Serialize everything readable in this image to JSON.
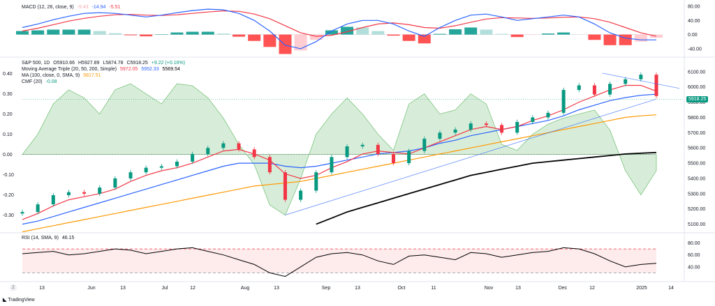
{
  "macd_header": {
    "title": "MACD (12, 26, close, 9)",
    "hist": "-9.43",
    "macd": "-14.94",
    "signal": "-5.51"
  },
  "price_header": {
    "symbol": "S&P 500, 1D",
    "open": "O5910.66",
    "high": "H5927.89",
    "low": "L5874.78",
    "close": "C5918.25",
    "change": "+9.22 (+0.16%)",
    "ma_triple": "Moving Average Triple (20, 50, 200, Simple)",
    "ma_triple_vals": [
      "5972.05",
      "5952.33",
      "5569.54"
    ],
    "ma100": "MA (100, close, 0, SMA, 9)",
    "ma100_val": "5817.51",
    "cmf": "CMF (20)",
    "cmf_val": "-0.08"
  },
  "rsi_header": {
    "title": "RSI (14, SMA, 9)",
    "value": "46.15"
  },
  "last_price_badge": "5918.25",
  "brand": "TradingView",
  "zoom_icon": "Z",
  "x_ticks": [
    "13",
    "Jun",
    "13",
    "Jul",
    "12",
    "Aug",
    "13",
    "Sep",
    "13",
    "Oct",
    "11",
    "Nov",
    "13",
    "Dec",
    "12",
    "2025",
    "14"
  ],
  "macd_axis": [
    "80.00",
    "40.00",
    "0.00",
    "-40.00"
  ],
  "price_axis": [
    "6100.00",
    "6000.00",
    "5900.00",
    "5800.00",
    "5700.00",
    "5600.00",
    "5500.00",
    "5400.00",
    "5300.00",
    "5200.00",
    "5100.00"
  ],
  "cmf_axis": [
    "0.40",
    "0.30",
    "0.20",
    "0.10",
    "0.00",
    "-0.10",
    "-0.20",
    "-0.30"
  ],
  "rsi_axis": [
    "80.00",
    "60.00",
    "40.00"
  ],
  "colors": {
    "up": "#089981",
    "down": "#f23645",
    "ma20": "#f23645",
    "ma50": "#2962ff",
    "ma200": "#000000",
    "ma100": "#ff9800",
    "cmf": "#4caf50",
    "macd": "#2962ff",
    "signal": "#f23645",
    "rsi": "#000000",
    "rsi_band": "#f23645",
    "trend": "#2962ff"
  },
  "chart_data": [
    {
      "type": "bar",
      "title": "MACD (12, 26, close, 9)",
      "ylim": [
        -60,
        90
      ],
      "x": [
        0,
        4,
        8,
        12,
        16,
        20,
        24,
        28,
        32,
        36,
        40,
        44,
        48,
        52,
        56,
        60,
        64,
        68,
        72,
        76,
        80,
        84,
        88,
        92,
        96,
        100,
        104,
        108,
        112,
        116,
        120,
        124,
        128,
        132,
        136,
        140,
        144,
        148,
        152,
        156,
        160,
        164
      ],
      "series": [
        {
          "name": "MACD",
          "values": [
            20,
            30,
            42,
            52,
            60,
            62,
            60,
            55,
            50,
            55,
            62,
            68,
            72,
            70,
            60,
            40,
            10,
            -30,
            -40,
            -20,
            10,
            30,
            40,
            40,
            30,
            10,
            -5,
            20,
            40,
            55,
            58,
            50,
            40,
            45,
            50,
            55,
            50,
            30,
            5,
            -10,
            -15,
            -15
          ]
        },
        {
          "name": "Signal",
          "values": [
            10,
            18,
            28,
            38,
            46,
            52,
            56,
            57,
            55,
            54,
            56,
            60,
            64,
            67,
            66,
            58,
            45,
            25,
            5,
            -5,
            -2,
            8,
            20,
            30,
            33,
            28,
            20,
            18,
            25,
            35,
            44,
            48,
            47,
            46,
            47,
            49,
            50,
            45,
            35,
            20,
            5,
            -5
          ]
        },
        {
          "name": "Histogram",
          "values": [
            10,
            12,
            14,
            14,
            14,
            10,
            4,
            -2,
            -5,
            1,
            6,
            8,
            8,
            3,
            -6,
            -18,
            -35,
            -55,
            -45,
            -15,
            12,
            22,
            20,
            10,
            -3,
            -18,
            -25,
            2,
            15,
            20,
            14,
            2,
            -7,
            -1,
            3,
            6,
            0,
            -15,
            -30,
            -30,
            -20,
            -9
          ]
        }
      ]
    },
    {
      "type": "line",
      "title": "S&P 500, 1D",
      "ylim": [
        5080,
        6140
      ],
      "x": [
        0,
        4,
        8,
        12,
        16,
        20,
        24,
        28,
        32,
        36,
        40,
        44,
        48,
        52,
        56,
        60,
        64,
        68,
        72,
        76,
        80,
        84,
        88,
        92,
        96,
        100,
        104,
        108,
        112,
        116,
        120,
        124,
        128,
        132,
        136,
        140,
        144,
        148,
        152,
        156,
        160,
        164
      ],
      "series": [
        {
          "name": "Close",
          "values": [
            5180,
            5230,
            5290,
            5310,
            5300,
            5340,
            5400,
            5440,
            5470,
            5480,
            5510,
            5560,
            5600,
            5630,
            5590,
            5540,
            5440,
            5260,
            5320,
            5440,
            5540,
            5610,
            5620,
            5560,
            5500,
            5580,
            5660,
            5700,
            5720,
            5760,
            5750,
            5700,
            5770,
            5800,
            5830,
            5980,
            6010,
            5950,
            6020,
            6050,
            6080,
            5940
          ]
        },
        {
          "name": "MA 20",
          "values": [
            5130,
            5170,
            5220,
            5260,
            5280,
            5300,
            5330,
            5380,
            5420,
            5450,
            5470,
            5500,
            5540,
            5580,
            5590,
            5560,
            5520,
            5430,
            5400,
            5420,
            5470,
            5510,
            5560,
            5580,
            5570,
            5560,
            5600,
            5640,
            5680,
            5720,
            5740,
            5720,
            5740,
            5780,
            5810,
            5850,
            5900,
            5940,
            5980,
            6010,
            6010,
            5972
          ]
        },
        {
          "name": "MA 50",
          "values": [
            5100,
            5120,
            5150,
            5180,
            5210,
            5240,
            5270,
            5300,
            5330,
            5360,
            5390,
            5420,
            5450,
            5480,
            5500,
            5500,
            5500,
            5480,
            5470,
            5480,
            5500,
            5520,
            5540,
            5560,
            5570,
            5580,
            5600,
            5630,
            5650,
            5680,
            5700,
            5720,
            5740,
            5760,
            5780,
            5810,
            5850,
            5880,
            5910,
            5930,
            5945,
            5952
          ]
        },
        {
          "name": "MA 100",
          "values": [
            5050,
            5070,
            5090,
            5110,
            5130,
            5150,
            5170,
            5190,
            5210,
            5230,
            5250,
            5270,
            5290,
            5310,
            5330,
            5350,
            5360,
            5370,
            5380,
            5400,
            5420,
            5440,
            5460,
            5480,
            5500,
            5520,
            5540,
            5560,
            5580,
            5600,
            5620,
            5640,
            5660,
            5680,
            5700,
            5720,
            5740,
            5760,
            5780,
            5800,
            5810,
            5817
          ]
        },
        {
          "name": "MA 200",
          "values": [
            null,
            null,
            null,
            null,
            null,
            null,
            null,
            null,
            null,
            null,
            null,
            null,
            null,
            null,
            null,
            null,
            null,
            null,
            null,
            5100,
            5140,
            5180,
            5210,
            5240,
            5270,
            5300,
            5330,
            5360,
            5390,
            5420,
            5440,
            5460,
            5480,
            5500,
            5510,
            5520,
            5530,
            5540,
            5550,
            5560,
            5565,
            5570
          ]
        }
      ]
    },
    {
      "type": "area",
      "title": "CMF (20)",
      "ylim": [
        -0.36,
        0.44
      ],
      "x": [
        0,
        4,
        8,
        12,
        16,
        20,
        24,
        28,
        32,
        36,
        40,
        44,
        48,
        52,
        56,
        60,
        64,
        68,
        72,
        76,
        80,
        84,
        88,
        92,
        96,
        100,
        104,
        108,
        112,
        116,
        120,
        124,
        128,
        132,
        136,
        140,
        144,
        148,
        152,
        156,
        160,
        164
      ],
      "series": [
        {
          "name": "CMF",
          "values": [
            0,
            0.1,
            0.25,
            0.32,
            0.28,
            0.2,
            0.32,
            0.35,
            0.3,
            0.25,
            0.35,
            0.34,
            0.28,
            0.18,
            0.05,
            -0.05,
            -0.25,
            -0.3,
            -0.12,
            0.1,
            0.2,
            0.28,
            0.2,
            0.1,
            0.02,
            0.25,
            0.3,
            0.2,
            0.22,
            0.3,
            0.25,
            0.05,
            0.02,
            0.1,
            0.15,
            0.18,
            0.2,
            0.22,
            0.12,
            -0.08,
            -0.2,
            -0.08
          ]
        }
      ]
    },
    {
      "type": "line",
      "title": "RSI (14, SMA, 9)",
      "ylim": [
        20,
        90
      ],
      "x": [
        0,
        4,
        8,
        12,
        16,
        20,
        24,
        28,
        32,
        36,
        40,
        44,
        48,
        52,
        56,
        60,
        64,
        68,
        72,
        76,
        80,
        84,
        88,
        92,
        96,
        100,
        104,
        108,
        112,
        116,
        120,
        124,
        128,
        132,
        136,
        140,
        144,
        148,
        152,
        156,
        160,
        164
      ],
      "series": [
        {
          "name": "RSI",
          "values": [
            62,
            64,
            66,
            60,
            62,
            66,
            70,
            68,
            62,
            66,
            70,
            72,
            66,
            60,
            52,
            44,
            30,
            24,
            40,
            56,
            62,
            64,
            60,
            50,
            44,
            58,
            60,
            56,
            52,
            64,
            62,
            56,
            60,
            64,
            66,
            72,
            70,
            62,
            50,
            40,
            44,
            46
          ]
        }
      ]
    }
  ]
}
